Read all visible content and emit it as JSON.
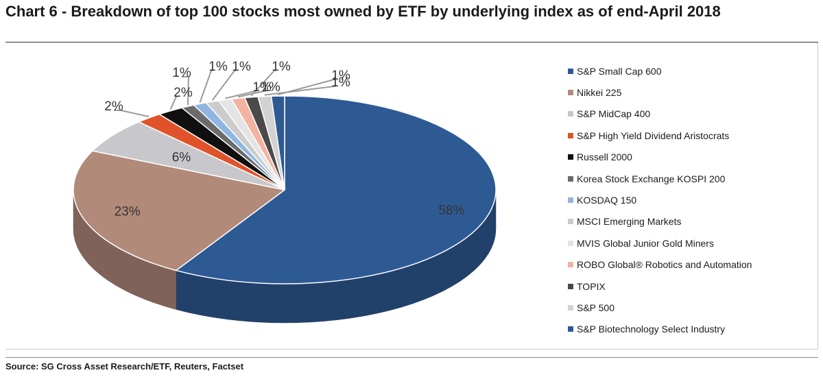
{
  "title": "Chart 6 - Breakdown of top 100 stocks most owned by ETF by underlying index as of end-April 2018",
  "source": "Source: SG Cross Asset Research/ETF, Reuters, Factset",
  "chart_data": {
    "type": "pie",
    "title": "Chart 6 - Breakdown of top 100 stocks most owned by ETF by underlying index as of end-April 2018",
    "legend_position": "right",
    "slices": [
      {
        "name": "S&P Small Cap 600",
        "value": 58,
        "label": "58%",
        "color": "#2e5a94"
      },
      {
        "name": "Nikkei 225",
        "value": 23,
        "label": "23%",
        "color": "#b28a7a"
      },
      {
        "name": "S&P MidCap 400",
        "value": 6,
        "label": "6%",
        "color": "#c8c8cc"
      },
      {
        "name": "S&P High Yield Dividend Aristocrats",
        "value": 2,
        "label": "2%",
        "color": "#e0532a"
      },
      {
        "name": "Russell 2000",
        "value": 2,
        "label": "2%",
        "color": "#101010"
      },
      {
        "name": "Korea Stock Exchange KOSPI 200",
        "value": 1,
        "label": "1%",
        "color": "#6b6b6b"
      },
      {
        "name": "KOSDAQ 150",
        "value": 1,
        "label": "1%",
        "color": "#8fb6e0"
      },
      {
        "name": "MSCI Emerging Markets",
        "value": 1,
        "label": "1%",
        "color": "#cccccc"
      },
      {
        "name": "MVIS Global Junior Gold Miners",
        "value": 1,
        "label": "1%",
        "color": "#e4e4e4"
      },
      {
        "name": "ROBO Global® Robotics and Automation",
        "value": 1,
        "label": "1%",
        "color": "#f2b3a0"
      },
      {
        "name": "TOPIX",
        "value": 1,
        "label": "1%",
        "color": "#4a4a4a"
      },
      {
        "name": "S&P 500",
        "value": 1,
        "label": "1%",
        "color": "#d2d2d2"
      },
      {
        "name": "S&P Biotechnology Select Industry",
        "value": 1,
        "label": "1%",
        "color": "#2e5a94"
      }
    ]
  }
}
